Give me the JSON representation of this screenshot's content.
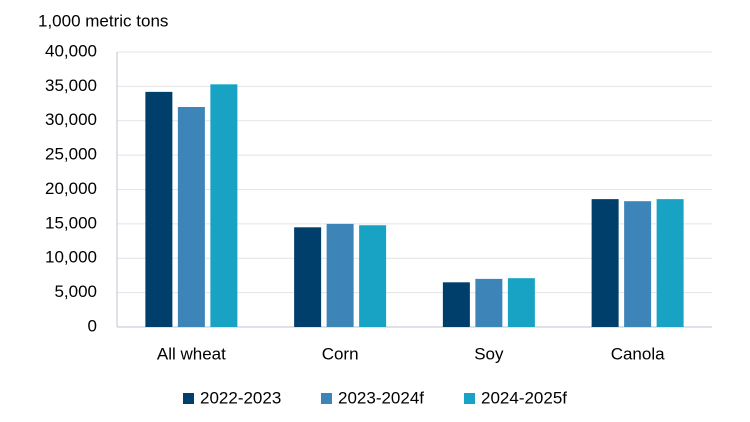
{
  "chart_data": {
    "type": "bar",
    "y_label": "1,000 metric tons",
    "categories": [
      "All wheat",
      "Corn",
      "Soy",
      "Canola"
    ],
    "series": [
      {
        "name": "2022-2023",
        "color": "#003f6b",
        "values": [
          34200,
          14500,
          6500,
          18600
        ]
      },
      {
        "name": "2023-2024f",
        "color": "#3d85b8",
        "values": [
          32000,
          15000,
          7000,
          18300
        ]
      },
      {
        "name": "2024-2025f",
        "color": "#18a3c4",
        "values": [
          35300,
          14800,
          7100,
          18600
        ]
      }
    ],
    "ylim": [
      0,
      40000
    ],
    "yticks": [
      0,
      {
        "value": 5000,
        "label": "5,000"
      },
      {
        "value": 10000,
        "label": "10,000"
      },
      {
        "value": 15000,
        "label": "15,000"
      },
      {
        "value": 20000,
        "label": "20,000"
      },
      {
        "value": 25000,
        "label": "25,000"
      },
      {
        "value": 30000,
        "label": "30,000"
      },
      {
        "value": 35000,
        "label": "35,000"
      },
      {
        "value": 40000,
        "label": "40,000"
      }
    ],
    "grid": true,
    "legend": "bottom"
  }
}
